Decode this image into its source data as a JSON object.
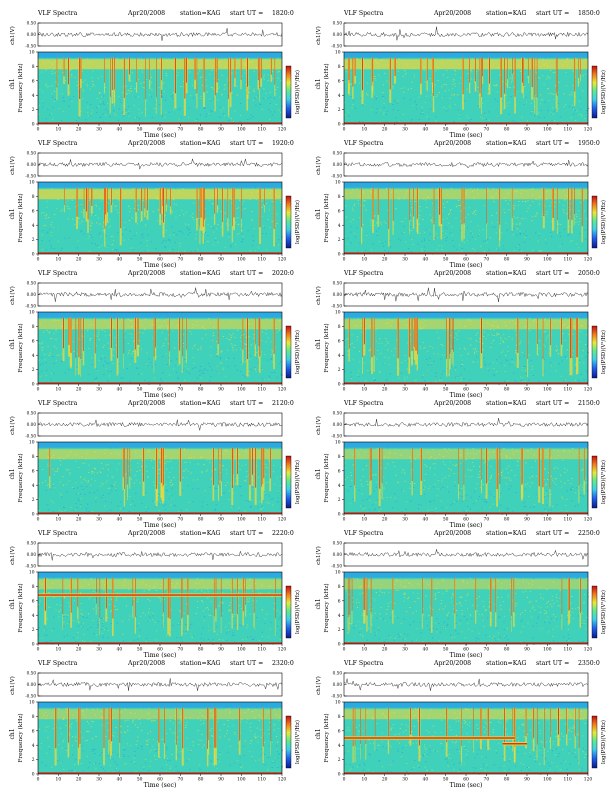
{
  "panel_labels": {
    "header_left": "VLF Spectra",
    "date": "Apr20/2008",
    "station": "station=KAG",
    "start_ut_prefix": "start  UT  =",
    "waveform_axis": "ch1(V)",
    "channel_label": "ch1",
    "colorbar_label": "log(PSD)(V²/Hz)"
  },
  "colors": {
    "spectrogram_background": "#3fd1b9",
    "low_band": "#2aa4e8",
    "mid_band": "#9ee868",
    "high_band": "#f2d83a",
    "burst": "#d62a14",
    "line": "#222222"
  },
  "chart_data": [
    {
      "type": "heatmap",
      "panel": "1820",
      "start_ut": "1820:0",
      "title": "VLF Spectra   Apr20/2008   station=KAG  start  UT  =1820:0",
      "xlabel": "Time (sec)",
      "ylabel": "Frequency (kHz)",
      "x_ticks": [
        "0",
        "10",
        "20",
        "30",
        "40",
        "50",
        "60",
        "70",
        "80",
        "90",
        "100",
        "110",
        "120"
      ],
      "y_ticks": [
        "0",
        "2",
        "4",
        "6",
        "8",
        "10"
      ],
      "waveform_ticks": [
        "0.50",
        "0.00",
        "-0.50"
      ],
      "xlim": [
        0,
        120
      ],
      "ylim": [
        0,
        10
      ],
      "waveform_ylim": [
        -0.5,
        0.5
      ],
      "colorbar": {
        "label": "log(PSD)(V²/Hz)"
      },
      "activity": "high",
      "tones": []
    },
    {
      "type": "heatmap",
      "panel": "1850",
      "start_ut": "1850:0",
      "title": "VLF Spectra   Apr20/2008   station=KAG  start  UT  =1850:0",
      "xlabel": "Time (sec)",
      "ylabel": "Frequency (kHz)",
      "x_ticks": [
        "0",
        "10",
        "20",
        "30",
        "40",
        "50",
        "60",
        "70",
        "80",
        "90",
        "100",
        "110",
        "120"
      ],
      "y_ticks": [
        "0",
        "2",
        "4",
        "6",
        "8",
        "10"
      ],
      "waveform_ticks": [
        "0.50",
        "0.00",
        "-0.50"
      ],
      "xlim": [
        0,
        120
      ],
      "ylim": [
        0,
        10
      ],
      "waveform_ylim": [
        -0.5,
        0.5
      ],
      "colorbar": {
        "label": "log(PSD)(V²/Hz)"
      },
      "activity": "high",
      "tones": []
    },
    {
      "type": "heatmap",
      "panel": "1920",
      "start_ut": "1920:0",
      "title": "VLF Spectra   Apr20/2008   station=KAG  start  UT  =1920:0",
      "xlabel": "Time (sec)",
      "ylabel": "Frequency (kHz)",
      "x_ticks": [
        "0",
        "10",
        "20",
        "30",
        "40",
        "50",
        "60",
        "70",
        "80",
        "90",
        "100",
        "110",
        "120"
      ],
      "y_ticks": [
        "0",
        "2",
        "4",
        "6",
        "8",
        "10"
      ],
      "waveform_ticks": [
        "0.50",
        "0.00",
        "-0.50"
      ],
      "xlim": [
        0,
        120
      ],
      "ylim": [
        0,
        10
      ],
      "waveform_ylim": [
        -0.5,
        0.5
      ],
      "colorbar": {
        "label": "log(PSD)(V²/Hz)"
      },
      "activity": "high",
      "tones": []
    },
    {
      "type": "heatmap",
      "panel": "1950",
      "start_ut": "1950:0",
      "title": "VLF Spectra   Apr20/2008   station=KAG  start  UT  =1950:0",
      "xlabel": "Time (sec)",
      "ylabel": "Frequency (kHz)",
      "x_ticks": [
        "0",
        "10",
        "20",
        "30",
        "40",
        "50",
        "60",
        "70",
        "80",
        "90",
        "100",
        "110",
        "120"
      ],
      "y_ticks": [
        "0",
        "2",
        "4",
        "6",
        "8",
        "10"
      ],
      "waveform_ticks": [
        "0.50",
        "0.00",
        "-0.50"
      ],
      "xlim": [
        0,
        120
      ],
      "ylim": [
        0,
        10
      ],
      "waveform_ylim": [
        -0.5,
        0.5
      ],
      "colorbar": {
        "label": "log(PSD)(V²/Hz)"
      },
      "activity": "medium",
      "tones": []
    },
    {
      "type": "heatmap",
      "panel": "2020",
      "start_ut": "2020:0",
      "title": "VLF Spectra   Apr20/2008   station=KAG  start  UT  =2020:0",
      "xlabel": "Time (sec)",
      "ylabel": "Frequency (kHz)",
      "x_ticks": [
        "0",
        "10",
        "20",
        "30",
        "40",
        "50",
        "60",
        "70",
        "80",
        "90",
        "100",
        "110",
        "120"
      ],
      "y_ticks": [
        "0",
        "2",
        "4",
        "6",
        "8",
        "10"
      ],
      "waveform_ticks": [
        "0.50",
        "0.00",
        "-0.50"
      ],
      "xlim": [
        0,
        120
      ],
      "ylim": [
        0,
        10
      ],
      "waveform_ylim": [
        -0.5,
        0.5
      ],
      "colorbar": {
        "label": "log(PSD)(V²/Hz)"
      },
      "activity": "medium",
      "tones": []
    },
    {
      "type": "heatmap",
      "panel": "2050",
      "start_ut": "2050:0",
      "title": "VLF Spectra   Apr20/2008   station=KAG  start  UT  =2050:0",
      "xlabel": "Time (sec)",
      "ylabel": "Frequency (kHz)",
      "x_ticks": [
        "0",
        "10",
        "20",
        "30",
        "40",
        "50",
        "60",
        "70",
        "80",
        "90",
        "100",
        "110",
        "120"
      ],
      "y_ticks": [
        "0",
        "2",
        "4",
        "6",
        "8",
        "10"
      ],
      "waveform_ticks": [
        "0.50",
        "0.00",
        "-0.50"
      ],
      "xlim": [
        0,
        120
      ],
      "ylim": [
        0,
        10
      ],
      "waveform_ylim": [
        -0.5,
        0.5
      ],
      "colorbar": {
        "label": "log(PSD)(V²/Hz)"
      },
      "activity": "medium",
      "tones": []
    },
    {
      "type": "heatmap",
      "panel": "2120",
      "start_ut": "2120:0",
      "title": "VLF Spectra   Apr20/2008   station=KAG  start  UT  =2120:0",
      "xlabel": "Time (sec)",
      "ylabel": "Frequency (kHz)",
      "x_ticks": [
        "0",
        "10",
        "20",
        "30",
        "40",
        "50",
        "60",
        "70",
        "80",
        "90",
        "100",
        "110",
        "120"
      ],
      "y_ticks": [
        "0",
        "2",
        "4",
        "6",
        "8",
        "10"
      ],
      "waveform_ticks": [
        "0.50",
        "0.00",
        "-0.50"
      ],
      "xlim": [
        0,
        120
      ],
      "ylim": [
        0,
        10
      ],
      "waveform_ylim": [
        -0.5,
        0.5
      ],
      "colorbar": {
        "label": "log(PSD)(V²/Hz)"
      },
      "activity": "medium",
      "tones": []
    },
    {
      "type": "heatmap",
      "panel": "2150",
      "start_ut": "2150:0",
      "title": "VLF Spectra   Apr20/2008   station=KAG  start  UT  =2150:0",
      "xlabel": "Time (sec)",
      "ylabel": "Frequency (kHz)",
      "x_ticks": [
        "0",
        "10",
        "20",
        "30",
        "40",
        "50",
        "60",
        "70",
        "80",
        "90",
        "100",
        "110",
        "120"
      ],
      "y_ticks": [
        "0",
        "2",
        "4",
        "6",
        "8",
        "10"
      ],
      "waveform_ticks": [
        "0.50",
        "0.00",
        "-0.50"
      ],
      "xlim": [
        0,
        120
      ],
      "ylim": [
        0,
        10
      ],
      "waveform_ylim": [
        -0.5,
        0.5
      ],
      "colorbar": {
        "label": "log(PSD)(V²/Hz)"
      },
      "activity": "low",
      "tones": []
    },
    {
      "type": "heatmap",
      "panel": "2220",
      "start_ut": "2220:0",
      "title": "VLF Spectra   Apr20/2008   station=KAG  start  UT  =2220:0",
      "xlabel": "Time (sec)",
      "ylabel": "Frequency (kHz)",
      "x_ticks": [
        "0",
        "10",
        "20",
        "30",
        "40",
        "50",
        "60",
        "70",
        "80",
        "90",
        "100",
        "110",
        "120"
      ],
      "y_ticks": [
        "0",
        "2",
        "4",
        "6",
        "8",
        "10"
      ],
      "waveform_ticks": [
        "0.50",
        "0.00",
        "-0.50"
      ],
      "xlim": [
        0,
        120
      ],
      "ylim": [
        0,
        10
      ],
      "waveform_ylim": [
        -0.5,
        0.5
      ],
      "colorbar": {
        "label": "log(PSD)(V²/Hz)"
      },
      "activity": "medium",
      "tones": [
        {
          "t0": 0,
          "t1": 120,
          "f": 6.8
        }
      ]
    },
    {
      "type": "heatmap",
      "panel": "2250",
      "start_ut": "2250:0",
      "title": "VLF Spectra   Apr20/2008   station=KAG  start  UT  =2250:0",
      "xlabel": "Time (sec)",
      "ylabel": "Frequency (kHz)",
      "x_ticks": [
        "0",
        "10",
        "20",
        "30",
        "40",
        "50",
        "60",
        "70",
        "80",
        "90",
        "100",
        "110",
        "120"
      ],
      "y_ticks": [
        "0",
        "2",
        "4",
        "6",
        "8",
        "10"
      ],
      "waveform_ticks": [
        "0.50",
        "0.00",
        "-0.50"
      ],
      "xlim": [
        0,
        120
      ],
      "ylim": [
        0,
        10
      ],
      "waveform_ylim": [
        -0.5,
        0.5
      ],
      "colorbar": {
        "label": "log(PSD)(V²/Hz)"
      },
      "activity": "low",
      "tones": []
    },
    {
      "type": "heatmap",
      "panel": "2320",
      "start_ut": "2320:0",
      "title": "VLF Spectra   Apr20/2008   station=KAG  start  UT  =2320:0",
      "xlabel": "Time (sec)",
      "ylabel": "Frequency (kHz)",
      "x_ticks": [
        "0",
        "10",
        "20",
        "30",
        "40",
        "50",
        "60",
        "70",
        "80",
        "90",
        "100",
        "110",
        "120"
      ],
      "y_ticks": [
        "0",
        "2",
        "4",
        "6",
        "8",
        "10"
      ],
      "waveform_ticks": [
        "0.50",
        "0.00",
        "-0.50"
      ],
      "xlim": [
        0,
        120
      ],
      "ylim": [
        0,
        10
      ],
      "waveform_ylim": [
        -0.5,
        0.5
      ],
      "colorbar": {
        "label": "log(PSD)(V²/Hz)"
      },
      "activity": "low",
      "tones": []
    },
    {
      "type": "heatmap",
      "panel": "2350",
      "start_ut": "2350:0",
      "title": "VLF Spectra   Apr20/2008   station=KAG  start  UT  =2350:0",
      "xlabel": "Time (sec)",
      "ylabel": "Frequency (kHz)",
      "x_ticks": [
        "0",
        "10",
        "20",
        "30",
        "40",
        "50",
        "60",
        "70",
        "80",
        "90",
        "100",
        "110",
        "120"
      ],
      "y_ticks": [
        "0",
        "2",
        "4",
        "6",
        "8",
        "10"
      ],
      "waveform_ticks": [
        "0.50",
        "0.00",
        "-0.50"
      ],
      "xlim": [
        0,
        120
      ],
      "ylim": [
        0,
        10
      ],
      "waveform_ylim": [
        -0.5,
        0.5
      ],
      "colorbar": {
        "label": "log(PSD)(V²/Hz)"
      },
      "activity": "medium",
      "tones": [
        {
          "t0": 0,
          "t1": 84,
          "f": 5.0
        },
        {
          "t0": 78,
          "t1": 90,
          "f": 4.2
        }
      ]
    }
  ]
}
